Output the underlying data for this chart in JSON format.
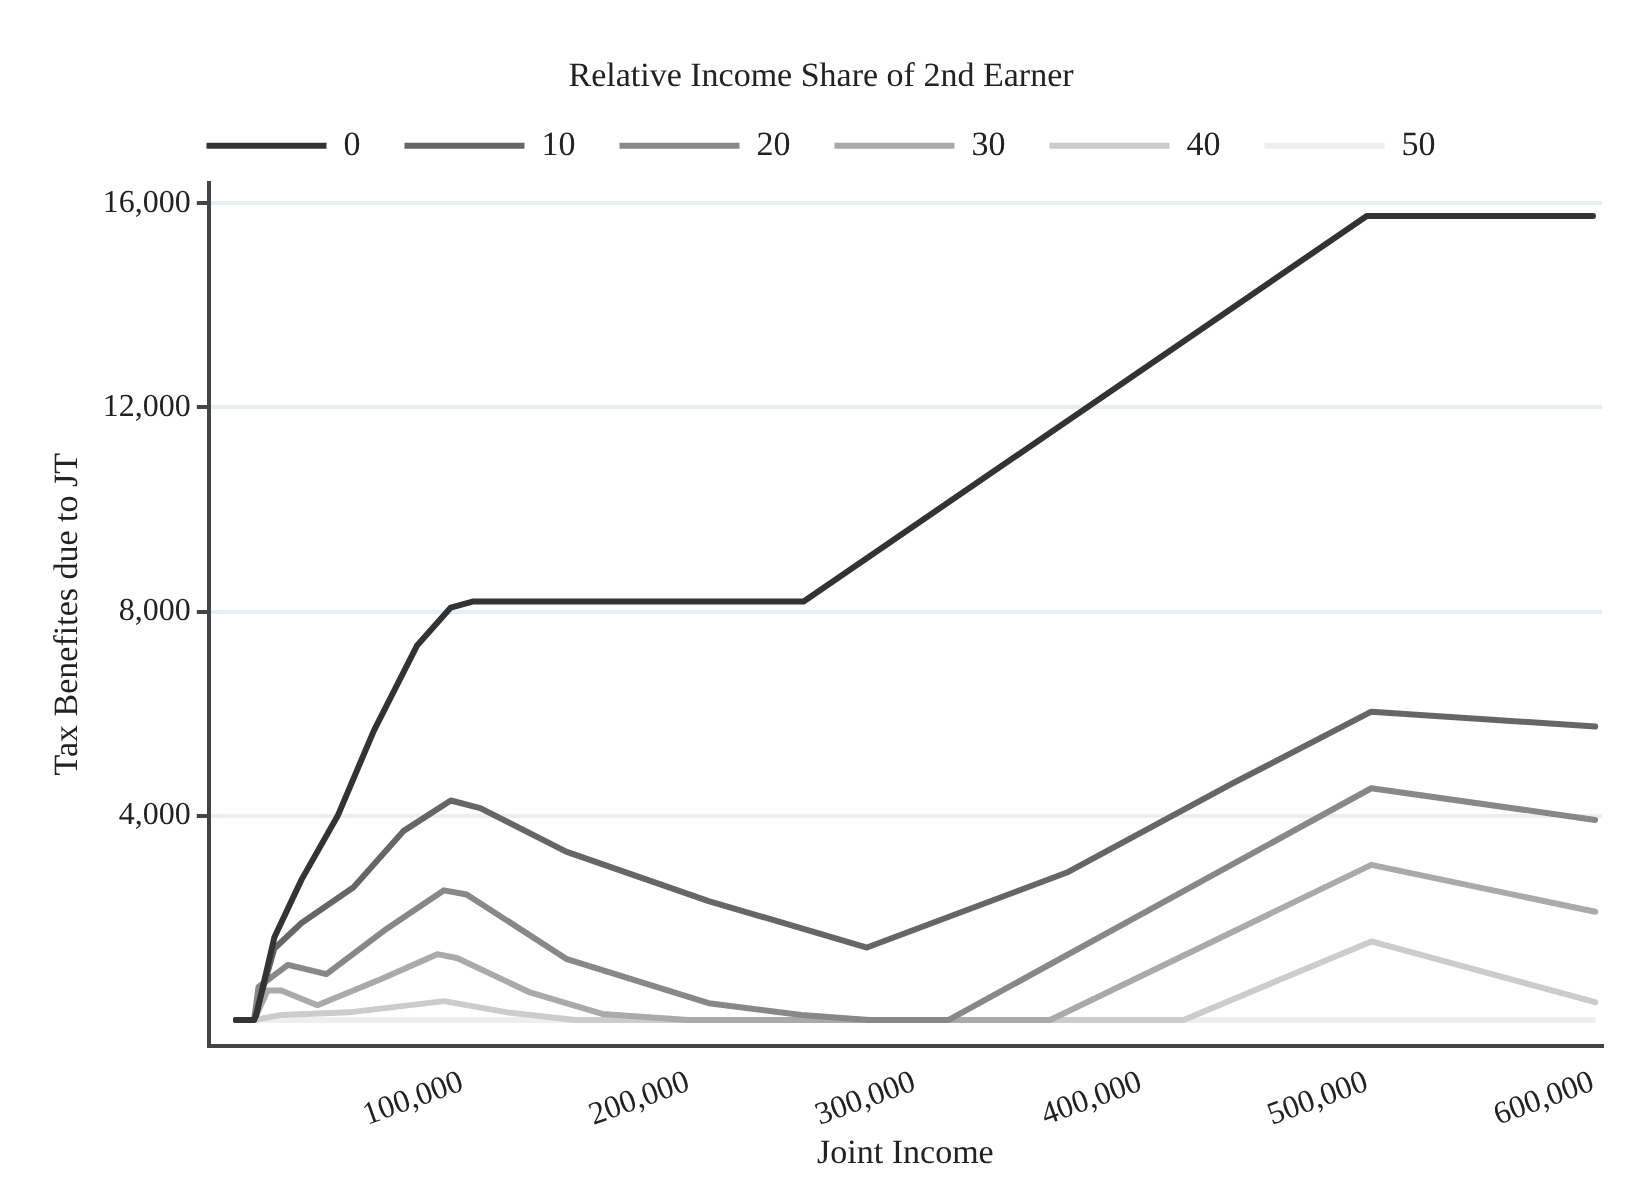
{
  "chart_data": {
    "type": "line",
    "xlabel": "Joint Income",
    "ylabel": "Tax Benefites due to JT",
    "legend_title": "Relative Income Share of 2nd Earner",
    "legend": "top",
    "grid": "y",
    "marker": "none",
    "line_style": "solid",
    "xlim": [
      -12000,
      604000
    ],
    "xticks": [
      {
        "value": 100000,
        "label": "100,000"
      },
      {
        "value": 200000,
        "label": "200,000"
      },
      {
        "value": 300000,
        "label": "300,000"
      },
      {
        "value": 400000,
        "label": "400,000"
      },
      {
        "value": 500000,
        "label": "500,000"
      },
      {
        "value": 600000,
        "label": "600,000"
      }
    ],
    "ylim": [
      -500,
      16400
    ],
    "yticks": [
      {
        "value": 4000,
        "label": "4,000"
      },
      {
        "value": 8000,
        "label": "8,000"
      },
      {
        "value": 12000,
        "label": "12,000"
      },
      {
        "value": 16000,
        "label": "16,000"
      }
    ],
    "series": [
      {
        "name": "0",
        "color": "#333333",
        "x": [
          0,
          8000,
          9000,
          17000,
          29000,
          45000,
          61000,
          80000,
          95000,
          105000,
          251000,
          500000,
          600000
        ],
        "values": [
          0,
          0,
          100,
          1620,
          2750,
          4000,
          5670,
          7330,
          8080,
          8200,
          8200,
          15750,
          15750
        ]
      },
      {
        "name": "10",
        "color": "#666666",
        "x": [
          0,
          8000,
          17000,
          29000,
          52000,
          74000,
          95000,
          108000,
          146000,
          209000,
          279000,
          368000,
          440000,
          502000,
          601000
        ],
        "values": [
          0,
          0,
          1400,
          1900,
          2600,
          3700,
          4300,
          4150,
          3300,
          2330,
          1420,
          2900,
          4620,
          6040,
          5750
        ]
      },
      {
        "name": "20",
        "color": "#888888",
        "x": [
          0,
          8000,
          10000,
          23000,
          40000,
          67000,
          92000,
          102000,
          146000,
          209000,
          250000,
          280000,
          315000,
          502000,
          601000
        ],
        "values": [
          0,
          0,
          650,
          1080,
          900,
          1800,
          2540,
          2460,
          1200,
          330,
          100,
          0,
          0,
          4540,
          3920
        ]
      },
      {
        "name": "30",
        "color": "#aaaaaa",
        "x": [
          0,
          8000,
          14000,
          20000,
          36000,
          64000,
          89000,
          98000,
          130000,
          162000,
          200000,
          360000,
          502000,
          601000
        ],
        "values": [
          0,
          0,
          580,
          580,
          290,
          800,
          1290,
          1210,
          540,
          120,
          0,
          0,
          3040,
          2120
        ]
      },
      {
        "name": "40",
        "color": "#cccccc",
        "x": [
          0,
          8000,
          20000,
          50000,
          92000,
          120000,
          150000,
          419000,
          502000,
          601000
        ],
        "values": [
          0,
          0,
          100,
          150,
          370,
          150,
          0,
          0,
          1540,
          350
        ]
      },
      {
        "name": "50",
        "color": "#eeeeee",
        "x": [
          0,
          600000
        ],
        "values": [
          0,
          0
        ]
      }
    ]
  }
}
